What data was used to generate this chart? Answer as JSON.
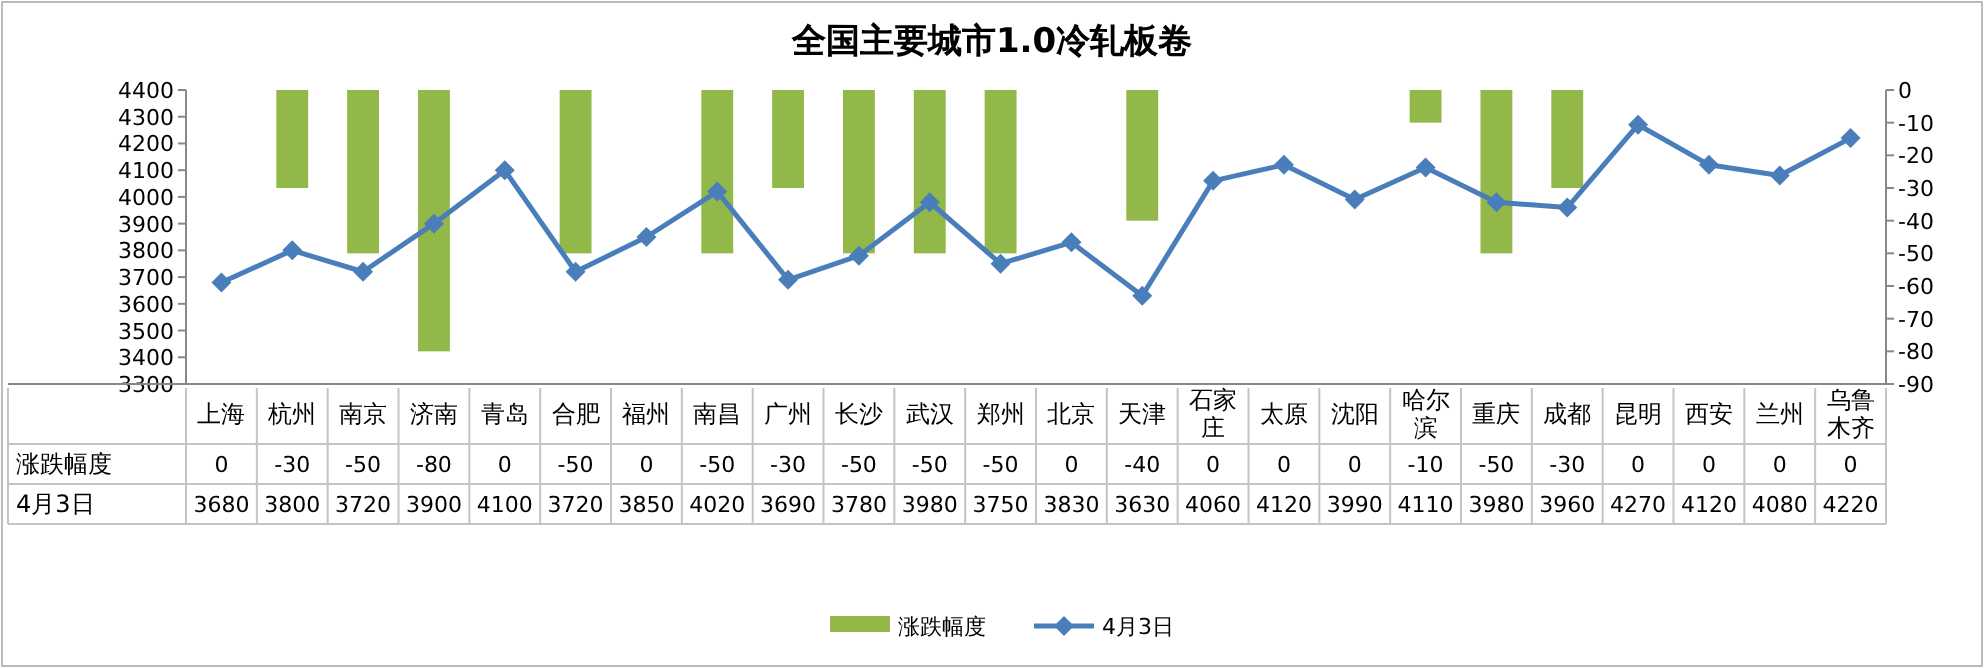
{
  "chart_data": {
    "type": "bar",
    "title": "全国主要城市1.0冷轧板卷",
    "categories": [
      "上海",
      "杭州",
      "南京",
      "济南",
      "青岛",
      "合肥",
      "福州",
      "南昌",
      "广州",
      "长沙",
      "武汉",
      "郑州",
      "北京",
      "天津",
      "石家庄",
      "太原",
      "沈阳",
      "哈尔滨",
      "重庆",
      "成都",
      "昆明",
      "西安",
      "兰州",
      "乌鲁木齐"
    ],
    "series": [
      {
        "name": "涨跌幅度",
        "axis": "y2",
        "color": "#92b84a",
        "values": [
          0,
          -30,
          -50,
          -80,
          0,
          -50,
          0,
          -50,
          -30,
          -50,
          -50,
          -50,
          0,
          -40,
          0,
          0,
          0,
          -10,
          -50,
          -30,
          0,
          0,
          0,
          0
        ]
      },
      {
        "name": "4月3日",
        "type": "line",
        "axis": "y",
        "color": "#4a7ebb",
        "marker": "diamond",
        "values": [
          3680,
          3800,
          3720,
          3900,
          4100,
          3720,
          3850,
          4020,
          3690,
          3780,
          3980,
          3750,
          3830,
          3630,
          4060,
          4120,
          3990,
          4110,
          3980,
          3960,
          4270,
          4120,
          4080,
          4220
        ]
      }
    ],
    "ylim": [
      3300,
      4400
    ],
    "yticks": [
      3300,
      3400,
      3500,
      3600,
      3700,
      3800,
      3900,
      4000,
      4100,
      4200,
      4300,
      4400
    ],
    "y2lim": [
      -90,
      0
    ],
    "y2ticks": [
      -90,
      -80,
      -70,
      -60,
      -50,
      -40,
      -30,
      -20,
      -10,
      0
    ],
    "data_labels": true,
    "legend": "bottom"
  }
}
